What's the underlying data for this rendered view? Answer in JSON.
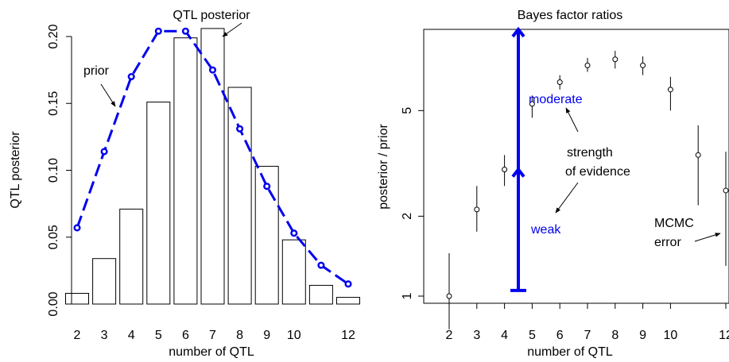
{
  "colors": {
    "prior": "#0000ee",
    "ink": "#000000",
    "background": "#ffffff"
  },
  "chart_data": [
    {
      "type": "bar",
      "title": "QTL posterior",
      "xlabel": "number of QTL",
      "ylabel": "QTL posterior",
      "x_ticks": [
        "2",
        "3",
        "4",
        "5",
        "6",
        "7",
        "8",
        "9",
        "10",
        "12"
      ],
      "y_ticks": [
        "0.00",
        "0.05",
        "0.10",
        "0.15",
        "0.20"
      ],
      "ylim": [
        0,
        0.205
      ],
      "categories": [
        2,
        3,
        4,
        5,
        6,
        7,
        8,
        9,
        10,
        11,
        12
      ],
      "series": [
        {
          "name": "posterior",
          "type": "bar",
          "values": [
            0.008,
            0.034,
            0.071,
            0.151,
            0.199,
            0.206,
            0.162,
            0.103,
            0.048,
            0.014,
            0.005
          ]
        },
        {
          "name": "prior",
          "type": "line",
          "style": "dashed-with-circles",
          "color": "#0000ee",
          "values": [
            0.057,
            0.114,
            0.17,
            0.204,
            0.204,
            0.175,
            0.131,
            0.088,
            0.053,
            0.029,
            0.015
          ]
        }
      ],
      "annotations": [
        {
          "text": "prior"
        }
      ]
    },
    {
      "type": "scatter",
      "title": "Bayes factor ratios",
      "xlabel": "number of QTL",
      "ylabel": "posterior / prior",
      "y_scale": "log",
      "x_ticks": [
        "2",
        "3",
        "4",
        "5",
        "6",
        "7",
        "8",
        "9",
        "10",
        "12"
      ],
      "y_ticks": [
        "1",
        "2",
        "5"
      ],
      "xlim": [
        1.3,
        12.1
      ],
      "ylim": [
        0.9,
        9.8
      ],
      "series": [
        {
          "name": "ratio",
          "x": [
            2,
            3,
            4,
            5,
            6,
            7,
            8,
            9,
            10,
            11,
            12
          ],
          "y": [
            1.0,
            2.12,
            3.0,
            5.3,
            6.4,
            7.4,
            7.8,
            7.4,
            6.0,
            3.4,
            2.5
          ],
          "err_low": [
            0.75,
            1.75,
            2.6,
            4.7,
            6.0,
            7.0,
            7.2,
            6.8,
            5.0,
            2.2,
            1.3
          ],
          "err_high": [
            1.45,
            2.6,
            3.4,
            5.7,
            6.8,
            7.9,
            8.4,
            8.0,
            6.7,
            4.4,
            3.5
          ]
        }
      ],
      "evidence_arrow": {
        "x": 4.5,
        "from": 1.05,
        "to": 9.8,
        "mid_arrowhead": 3.0,
        "color": "#0000ee"
      },
      "annotations": [
        {
          "text": "moderate",
          "color": "#0000ee"
        },
        {
          "text": "weak",
          "color": "#0000ee"
        },
        {
          "text": "strength"
        },
        {
          "text": "of evidence"
        },
        {
          "text": "MCMC"
        },
        {
          "text": "error"
        }
      ]
    }
  ]
}
